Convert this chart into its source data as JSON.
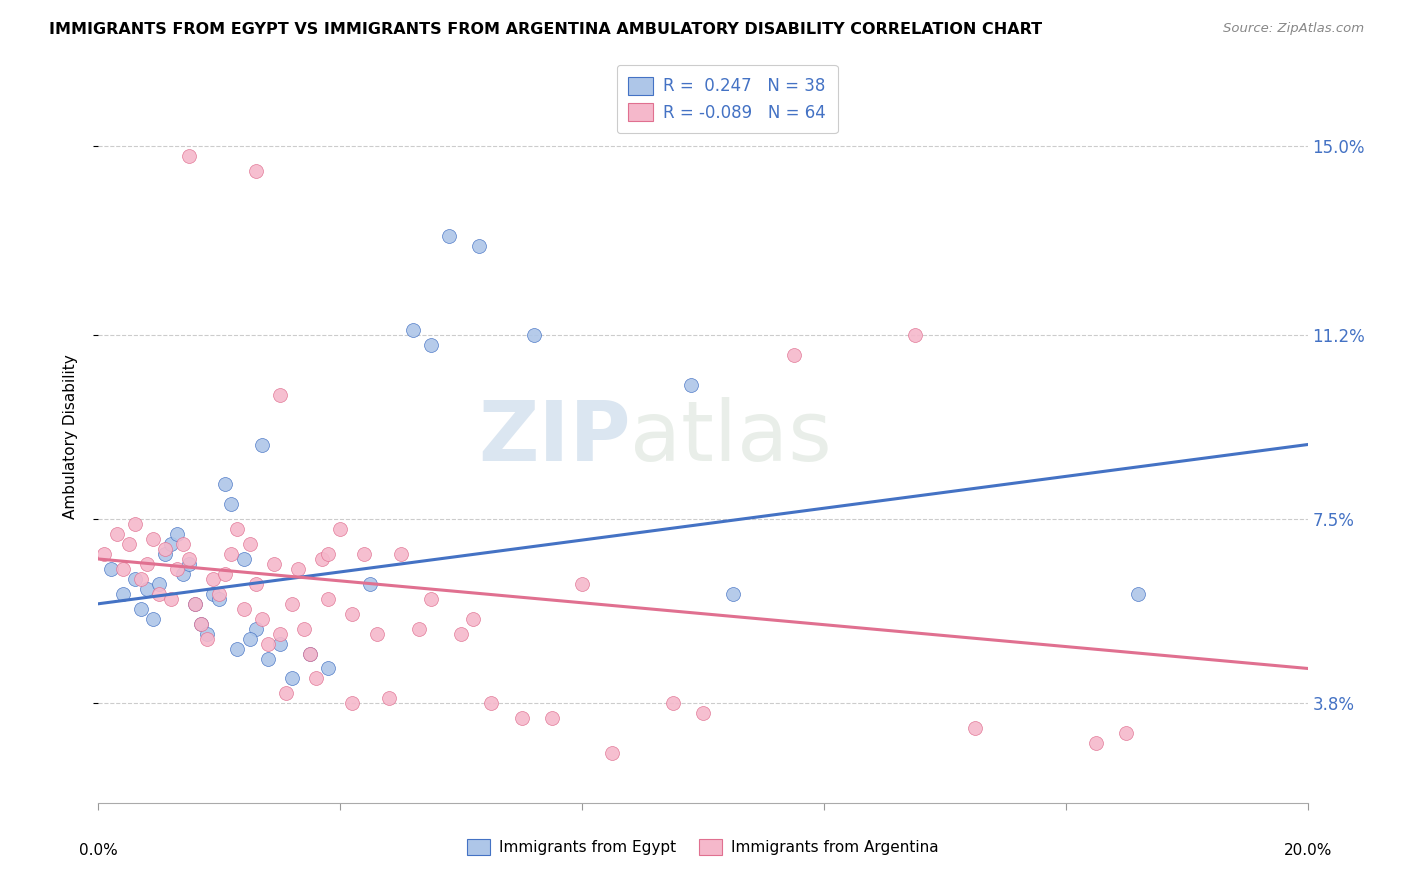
{
  "title": "IMMIGRANTS FROM EGYPT VS IMMIGRANTS FROM ARGENTINA AMBULATORY DISABILITY CORRELATION CHART",
  "source": "Source: ZipAtlas.com",
  "ylabel": "Ambulatory Disability",
  "ytick_labels": [
    "3.8%",
    "7.5%",
    "11.2%",
    "15.0%"
  ],
  "ytick_values": [
    3.8,
    7.5,
    11.2,
    15.0
  ],
  "xlim": [
    0.0,
    20.0
  ],
  "ylim": [
    1.8,
    16.5
  ],
  "egypt_R": 0.247,
  "egypt_N": 38,
  "argentina_R": -0.089,
  "argentina_N": 64,
  "egypt_color": "#aec6e8",
  "argentina_color": "#f5b8cb",
  "egypt_line_color": "#4472c4",
  "argentina_line_color": "#e07090",
  "legend_text_color": "#4472c4",
  "watermark_zip": "ZIP",
  "watermark_atlas": "atlas",
  "egypt_x": [
    0.2,
    0.4,
    0.6,
    0.7,
    0.8,
    0.9,
    1.0,
    1.1,
    1.2,
    1.3,
    1.4,
    1.5,
    1.6,
    1.7,
    1.8,
    1.9,
    2.0,
    2.1,
    2.2,
    2.4,
    2.6,
    2.7,
    3.0,
    3.5,
    3.8,
    4.5,
    5.2,
    5.5,
    5.8,
    6.3,
    7.2,
    9.8,
    10.5,
    17.2,
    2.3,
    2.5,
    2.8,
    3.2
  ],
  "egypt_y": [
    6.5,
    6.0,
    6.3,
    5.7,
    6.1,
    5.5,
    6.2,
    6.8,
    7.0,
    7.2,
    6.4,
    6.6,
    5.8,
    5.4,
    5.2,
    6.0,
    5.9,
    8.2,
    7.8,
    6.7,
    5.3,
    9.0,
    5.0,
    4.8,
    4.5,
    6.2,
    11.3,
    11.0,
    13.2,
    13.0,
    11.2,
    10.2,
    6.0,
    6.0,
    4.9,
    5.1,
    4.7,
    4.3
  ],
  "argentina_x": [
    0.1,
    0.3,
    0.4,
    0.5,
    0.6,
    0.7,
    0.8,
    0.9,
    1.0,
    1.1,
    1.2,
    1.3,
    1.4,
    1.5,
    1.6,
    1.7,
    1.8,
    1.9,
    2.0,
    2.1,
    2.2,
    2.3,
    2.4,
    2.5,
    2.6,
    2.7,
    2.8,
    2.9,
    3.0,
    3.1,
    3.2,
    3.3,
    3.4,
    3.5,
    3.6,
    3.7,
    3.8,
    4.0,
    4.2,
    4.4,
    4.6,
    4.8,
    5.0,
    5.5,
    6.0,
    6.5,
    7.5,
    8.0,
    9.5,
    10.0,
    11.5,
    13.5,
    14.5,
    16.5,
    17.0,
    3.0,
    3.8,
    4.2,
    5.3,
    6.2,
    7.0,
    8.5,
    2.6,
    1.5
  ],
  "argentina_y": [
    6.8,
    7.2,
    6.5,
    7.0,
    7.4,
    6.3,
    6.6,
    7.1,
    6.0,
    6.9,
    5.9,
    6.5,
    7.0,
    6.7,
    5.8,
    5.4,
    5.1,
    6.3,
    6.0,
    6.4,
    6.8,
    7.3,
    5.7,
    7.0,
    6.2,
    5.5,
    5.0,
    6.6,
    5.2,
    4.0,
    5.8,
    6.5,
    5.3,
    4.8,
    4.3,
    6.7,
    5.9,
    7.3,
    5.6,
    6.8,
    5.2,
    3.9,
    6.8,
    5.9,
    5.2,
    3.8,
    3.5,
    6.2,
    3.8,
    3.6,
    10.8,
    11.2,
    3.3,
    3.0,
    3.2,
    10.0,
    6.8,
    3.8,
    5.3,
    5.5,
    3.5,
    2.8,
    14.5,
    14.8
  ]
}
